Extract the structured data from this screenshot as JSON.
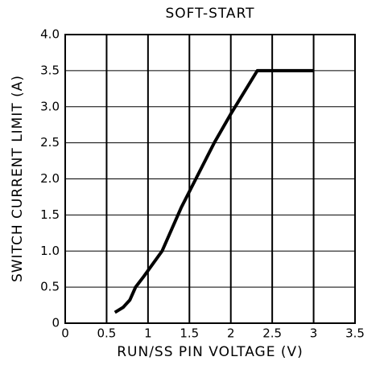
{
  "chart_data": {
    "type": "line",
    "title": "SOFT-START",
    "xlabel": "RUN/SS PIN VOLTAGE (V)",
    "ylabel": "SWITCH CURRENT LIMIT (A)",
    "x": [
      0.6,
      0.7,
      0.78,
      0.85,
      0.95,
      1.17,
      1.4,
      1.8,
      2.0,
      2.32,
      3.0
    ],
    "series": [
      {
        "name": "Switch current limit",
        "color": "#000000",
        "values": [
          0.15,
          0.22,
          0.32,
          0.5,
          0.65,
          1.0,
          1.6,
          2.5,
          2.9,
          3.5,
          3.5
        ]
      }
    ],
    "xlim": [
      0,
      3.5
    ],
    "xticks": [
      0,
      0.5,
      1,
      1.5,
      2,
      2.5,
      3,
      3.5
    ],
    "ylim": [
      0,
      4
    ],
    "yticks": [
      0,
      0.5,
      {
        "value": 1,
        "label": "1.0"
      },
      1.5,
      {
        "value": 2,
        "label": "2.0"
      },
      2.5,
      {
        "value": 3,
        "label": "3.0"
      },
      3.5,
      {
        "value": 4,
        "label": "4.0"
      }
    ],
    "grid": true
  }
}
